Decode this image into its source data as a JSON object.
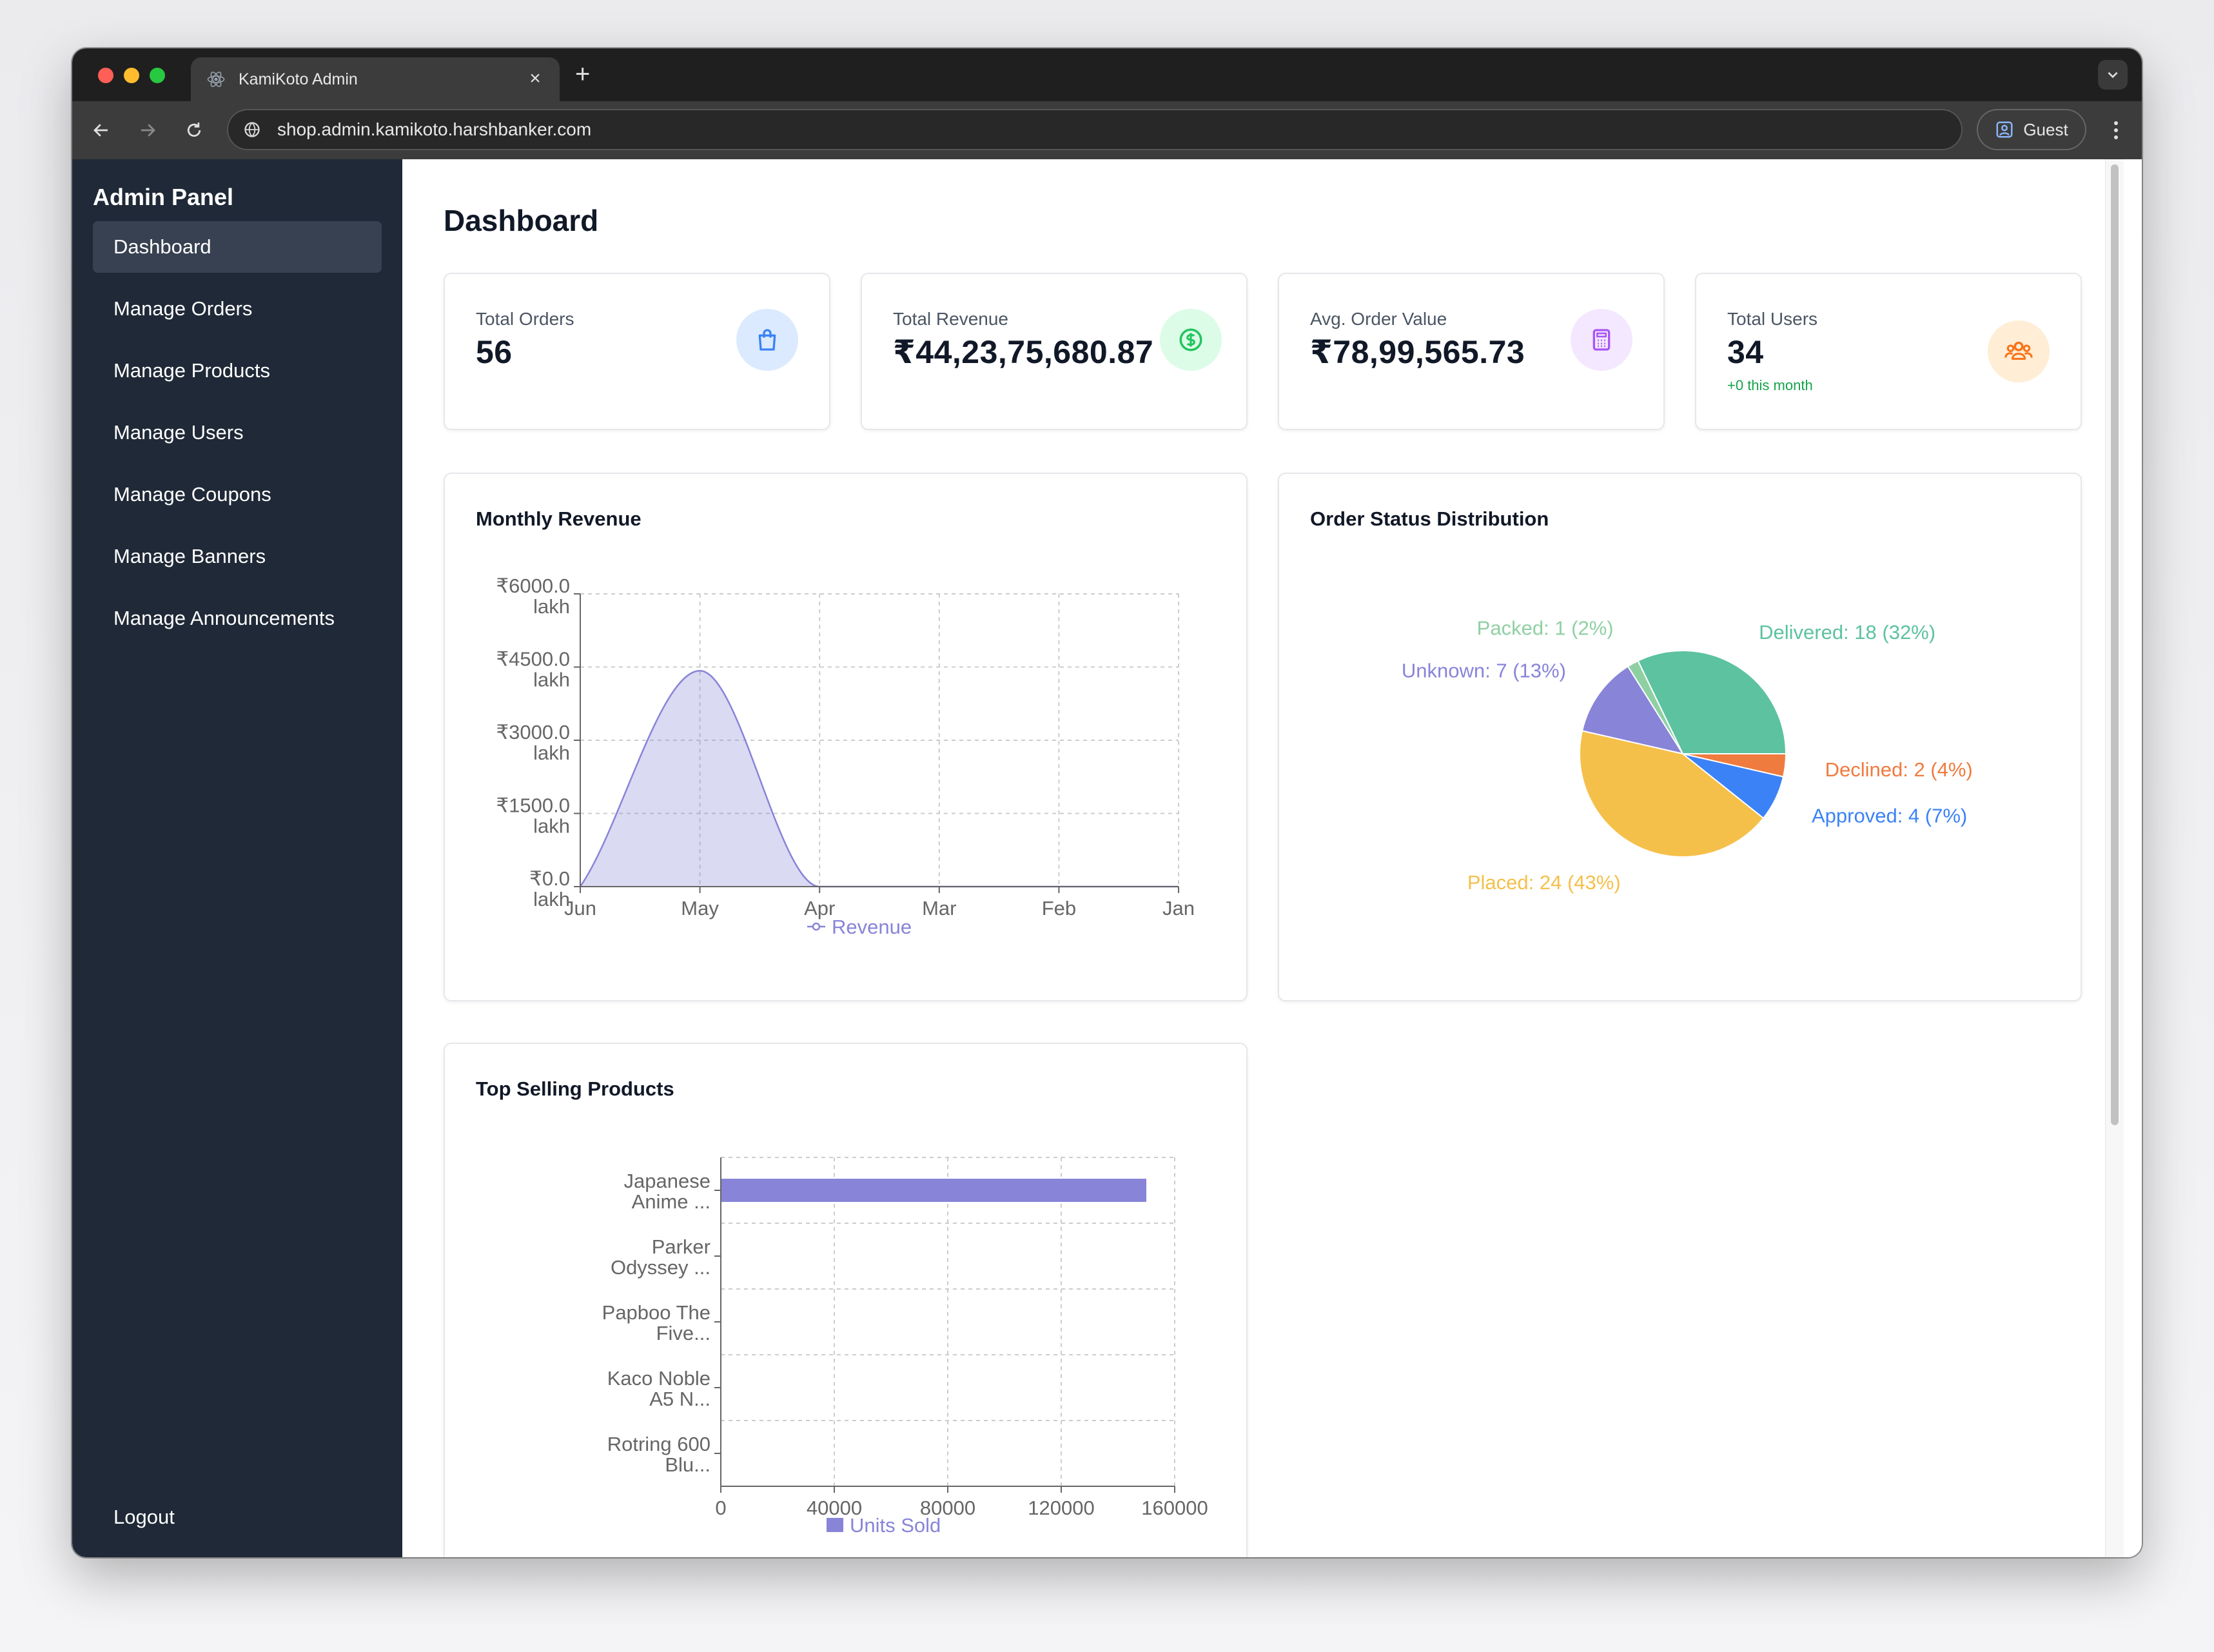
{
  "browser": {
    "tab_title": "KamiKoto Admin",
    "tab_close": "×",
    "new_tab": "+",
    "url": "shop.admin.kamikoto.harshbanker.com",
    "profile_label": "Guest"
  },
  "sidebar": {
    "brand": "Admin Panel",
    "items": [
      {
        "label": "Dashboard",
        "active": true
      },
      {
        "label": "Manage Orders"
      },
      {
        "label": "Manage Products"
      },
      {
        "label": "Manage Users"
      },
      {
        "label": "Manage Coupons"
      },
      {
        "label": "Manage Banners"
      },
      {
        "label": "Manage Announcements"
      }
    ],
    "logout": "Logout"
  },
  "main": {
    "title": "Dashboard",
    "stats": [
      {
        "label": "Total Orders",
        "value": "56",
        "icon": "shopping-bag-icon",
        "color": "#3b82f6"
      },
      {
        "label": "Total Revenue",
        "value": "₹44,23,75,680.87",
        "icon": "dollar-icon",
        "color": "#22c55e"
      },
      {
        "label": "Avg. Order Value",
        "value": "₹78,99,565.73",
        "icon": "calculator-icon",
        "color": "#a855f7"
      },
      {
        "label": "Total Users",
        "value": "34",
        "sub": "+0 this month",
        "icon": "users-icon",
        "color": "#f97316"
      }
    ],
    "monthly_revenue": {
      "title": "Monthly Revenue"
    },
    "order_status": {
      "title": "Order Status Distribution"
    },
    "top_products": {
      "title": "Top Selling Products"
    }
  },
  "chart_data": [
    {
      "type": "area",
      "title": "Monthly Revenue",
      "categories": [
        "Jun",
        "May",
        "Apr",
        "Mar",
        "Feb",
        "Jan"
      ],
      "series": [
        {
          "name": "Revenue",
          "values": [
            0,
            4423.76,
            0,
            0,
            0,
            0
          ],
          "color": "#8884d8"
        }
      ],
      "y_ticks": [
        "₹0.0 lakh",
        "₹1500.0 lakh",
        "₹3000.0 lakh",
        "₹4500.0 lakh",
        "₹6000.0 lakh"
      ],
      "ylim": [
        0,
        6000
      ],
      "grid": true,
      "legend": "bottom"
    },
    {
      "type": "pie",
      "title": "Order Status Distribution",
      "slices": [
        {
          "label": "Delivered: 18 (32%)",
          "value": 18,
          "color": "#5cc29f"
        },
        {
          "label": "Packed: 1 (2%)",
          "value": 1,
          "color": "#8fd0a3"
        },
        {
          "label": "Unknown: 7 (13%)",
          "value": 7,
          "color": "#8884d8"
        },
        {
          "label": "Placed: 24 (43%)",
          "value": 24,
          "color": "#f5c04a"
        },
        {
          "label": "Approved: 4 (7%)",
          "value": 4,
          "color": "#3b82f6"
        },
        {
          "label": "Declined: 2 (4%)",
          "value": 2,
          "color": "#f07b3f"
        }
      ]
    },
    {
      "type": "bar",
      "title": "Top Selling Products",
      "orientation": "horizontal",
      "categories": [
        [
          "Japanese",
          "Anime ..."
        ],
        [
          "Parker",
          "Odyssey ..."
        ],
        [
          "Papboo The",
          "Five..."
        ],
        [
          "Kaco Noble",
          "A5 N..."
        ],
        [
          "Rotring 600",
          "Blu..."
        ]
      ],
      "series": [
        {
          "name": "Units Sold",
          "values": [
            150000,
            0,
            0,
            0,
            0
          ],
          "color": "#8884d8"
        }
      ],
      "x_ticks": [
        "0",
        "40000",
        "80000",
        "120000",
        "160000"
      ],
      "xlim": [
        0,
        160000
      ],
      "grid": true,
      "legend": "bottom"
    }
  ]
}
